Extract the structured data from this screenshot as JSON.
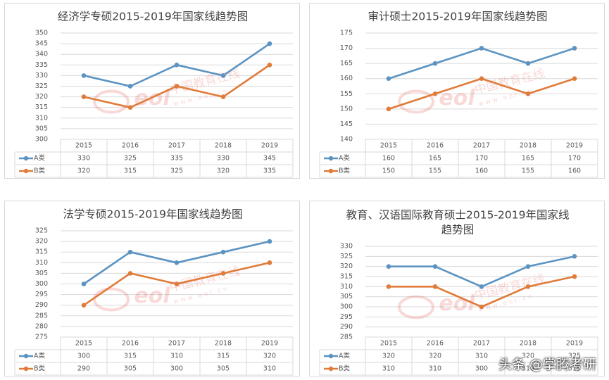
{
  "colors": {
    "series_a": "#5b93c2",
    "series_b": "#e07b39",
    "grid": "#d9d9d9",
    "axis_text": "#595959",
    "title_text": "#404040"
  },
  "footer": {
    "credit": "头条 @掌腾考研"
  },
  "watermark": {
    "logo": "eol",
    "cn_text": "中国教育在线",
    "url_text": "www.eol.cn"
  },
  "chart_data": [
    {
      "type": "line",
      "title": "经济学专硕2015-2019年国家线趋势图",
      "categories": [
        "2015",
        "2016",
        "2017",
        "2018",
        "2019"
      ],
      "series": [
        {
          "name": "A类",
          "values": [
            330,
            325,
            335,
            330,
            345
          ]
        },
        {
          "name": "B类",
          "values": [
            320,
            315,
            325,
            320,
            335
          ]
        }
      ],
      "yticks": [
        "300",
        "305",
        "310",
        "315",
        "320",
        "325",
        "330",
        "335",
        "340",
        "345",
        "350"
      ],
      "ylim": [
        300,
        350
      ],
      "legend": "data-table",
      "grid": true
    },
    {
      "type": "line",
      "title": "审计硕士2015-2019年国家线趋势图",
      "categories": [
        "2015",
        "2016",
        "2017",
        "2018",
        "2019"
      ],
      "series": [
        {
          "name": "A类",
          "values": [
            160,
            165,
            170,
            165,
            170
          ]
        },
        {
          "name": "B类",
          "values": [
            150,
            155,
            160,
            155,
            160
          ]
        }
      ],
      "yticks": [
        "140",
        "145",
        "150",
        "155",
        "160",
        "165",
        "170",
        "175"
      ],
      "ylim": [
        140,
        175
      ],
      "legend": "data-table",
      "grid": true
    },
    {
      "type": "line",
      "title": "法学专硕2015-2019年国家线趋势图",
      "categories": [
        "2015",
        "2016",
        "2017",
        "2018",
        "2019"
      ],
      "series": [
        {
          "name": "A类",
          "values": [
            300,
            315,
            310,
            315,
            320
          ]
        },
        {
          "name": "B类",
          "values": [
            290,
            305,
            300,
            305,
            310
          ]
        }
      ],
      "yticks": [
        "275",
        "280",
        "285",
        "290",
        "295",
        "300",
        "305",
        "310",
        "315",
        "320",
        "325"
      ],
      "ylim": [
        275,
        325
      ],
      "legend": "data-table",
      "grid": true
    },
    {
      "type": "line",
      "title": "教育、汉语国际教育硕士2015-2019年国家线趋势图",
      "title_lines": [
        "教育、汉语国际教育硕士2015-2019年国家线",
        "趋势图"
      ],
      "categories": [
        "2015",
        "2016",
        "2017",
        "2018",
        "2019"
      ],
      "series": [
        {
          "name": "A类",
          "values": [
            320,
            320,
            310,
            320,
            325
          ]
        },
        {
          "name": "B类",
          "values": [
            310,
            310,
            300,
            310,
            315
          ]
        }
      ],
      "yticks": [
        "285",
        "290",
        "295",
        "300",
        "305",
        "310",
        "315",
        "320",
        "325",
        "330"
      ],
      "ylim": [
        285,
        330
      ],
      "legend": "data-table",
      "grid": true
    }
  ]
}
